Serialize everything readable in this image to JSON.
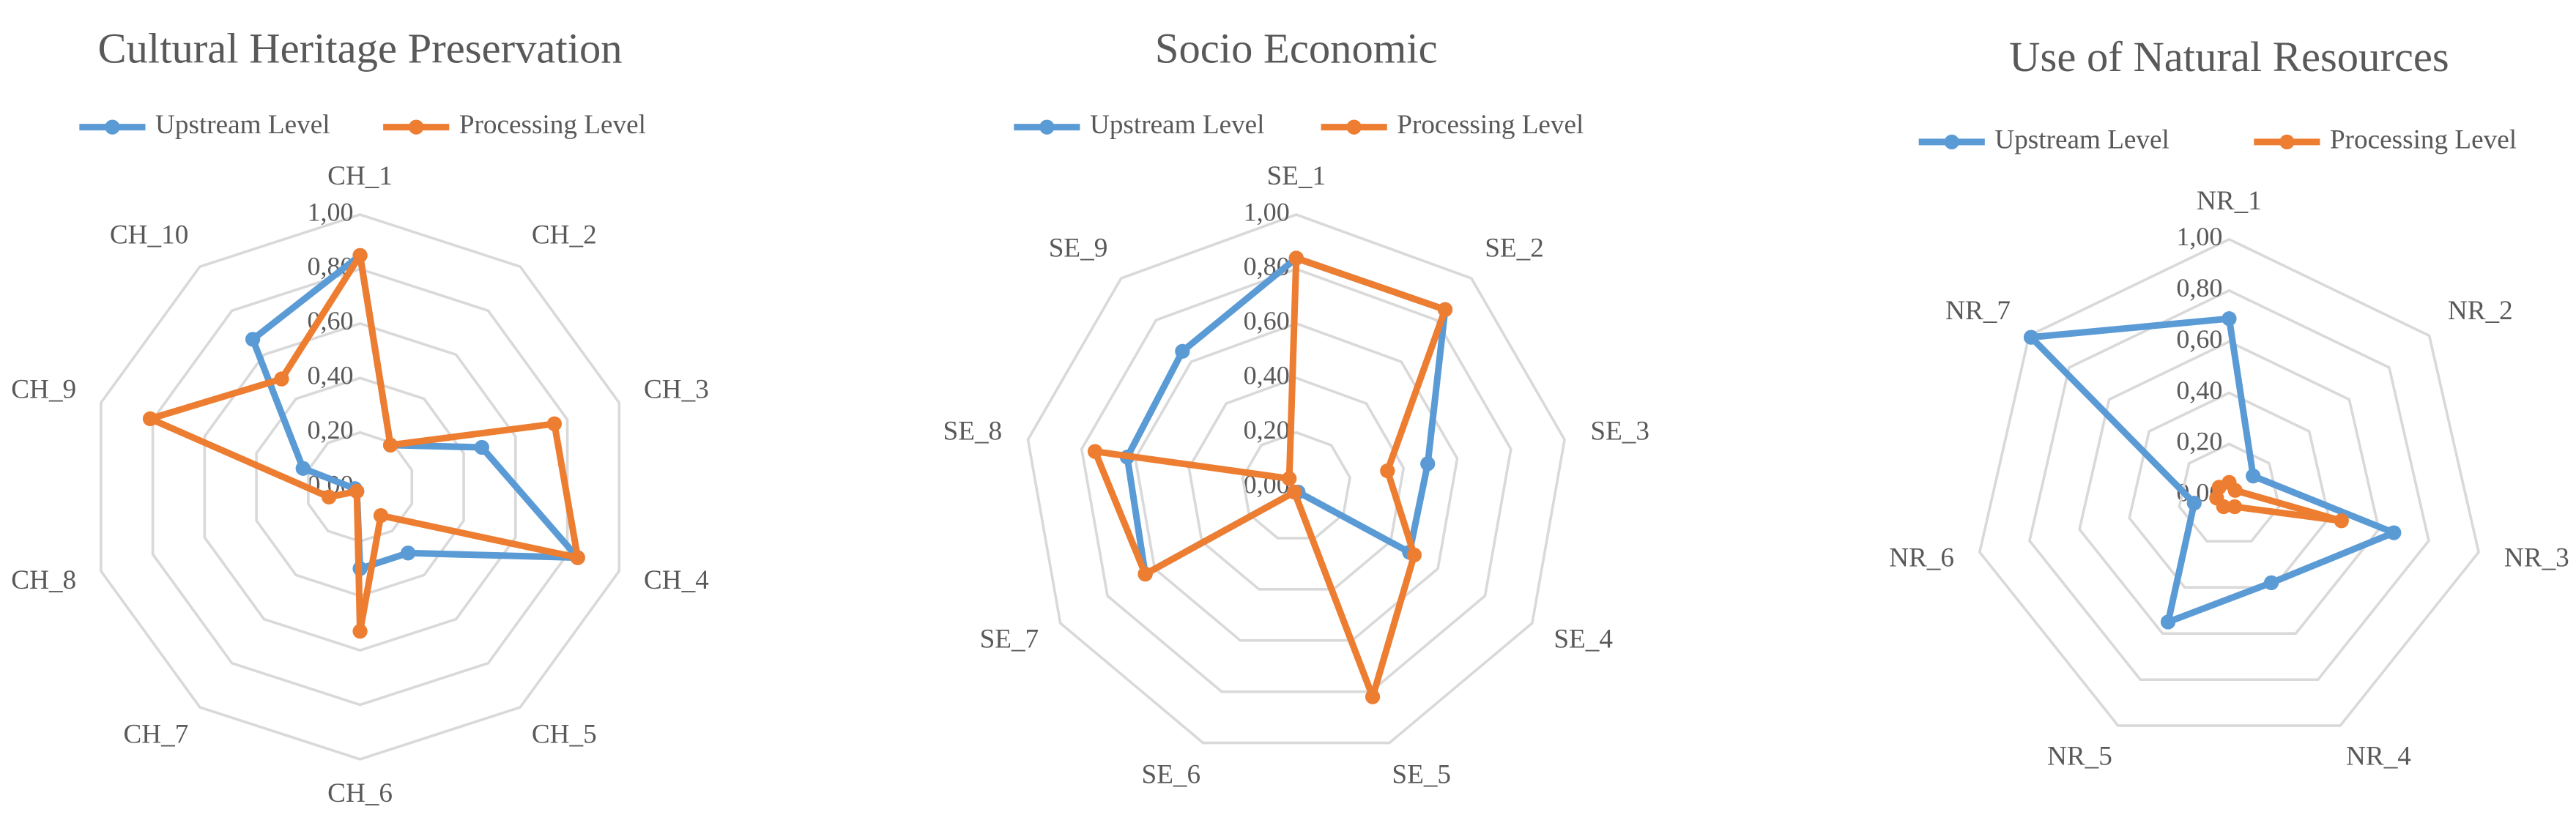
{
  "chart_data": [
    {
      "type": "radar",
      "title": "Cultural Heritage Preservation",
      "categories": [
        "CH_1",
        "CH_2",
        "CH_3",
        "CH_4",
        "CH_5",
        "CH_6",
        "CH_7",
        "CH_8",
        "CH_9",
        "CH_10"
      ],
      "series": [
        {
          "name": "Upstream Level",
          "color": "#5b9bd5",
          "values": [
            0.85,
            0.19,
            0.47,
            0.84,
            0.3,
            0.3,
            0.02,
            0.02,
            0.22,
            0.67
          ]
        },
        {
          "name": "Processing Level",
          "color": "#ed7d31",
          "values": [
            0.85,
            0.19,
            0.75,
            0.84,
            0.13,
            0.53,
            0.02,
            0.12,
            0.81,
            0.49
          ]
        }
      ],
      "ylim": [
        0,
        1
      ],
      "yticks": [
        {
          "value": 0,
          "label": "0,00"
        },
        {
          "value": 0.2,
          "label": "0,20"
        },
        {
          "value": 0.4,
          "label": "0,40"
        },
        {
          "value": 0.6,
          "label": "0,60"
        },
        {
          "value": 0.8,
          "label": "0,80"
        },
        {
          "value": 1,
          "label": "1,00"
        }
      ],
      "grid": true
    },
    {
      "type": "radar",
      "title": "Socio Economic",
      "categories": [
        "SE_1",
        "SE_2",
        "SE_3",
        "SE_4",
        "SE_5",
        "SE_6",
        "SE_7",
        "SE_8",
        "SE_9"
      ],
      "series": [
        {
          "name": "Upstream Level",
          "color": "#5b9bd5",
          "values": [
            0.84,
            0.85,
            0.49,
            0.48,
            0.02,
            0.02,
            0.64,
            0.63,
            0.65
          ]
        },
        {
          "name": "Processing Level",
          "color": "#ed7d31",
          "values": [
            0.84,
            0.85,
            0.34,
            0.5,
            0.82,
            0.02,
            0.64,
            0.75,
            0.04
          ]
        }
      ],
      "ylim": [
        0,
        1
      ],
      "yticks": [
        {
          "value": 0,
          "label": "0,00"
        },
        {
          "value": 0.2,
          "label": "0,20"
        },
        {
          "value": 0.4,
          "label": "0,40"
        },
        {
          "value": 0.6,
          "label": "0,60"
        },
        {
          "value": 0.8,
          "label": "0,80"
        },
        {
          "value": 1,
          "label": "1,00"
        }
      ],
      "grid": true
    },
    {
      "type": "radar",
      "title": "Use of Natural Resources",
      "categories": [
        "NR_1",
        "NR_2",
        "NR_3",
        "NR_4",
        "NR_5",
        "NR_6",
        "NR_7"
      ],
      "series": [
        {
          "name": "Upstream Level",
          "color": "#5b9bd5",
          "values": [
            0.69,
            0.12,
            0.66,
            0.38,
            0.55,
            0.14,
            0.99
          ]
        },
        {
          "name": "Processing Level",
          "color": "#ed7d31",
          "values": [
            0.05,
            0.03,
            0.45,
            0.05,
            0.05,
            0.05,
            0.05
          ]
        }
      ],
      "ylim": [
        0,
        1
      ],
      "yticks": [
        {
          "value": 0,
          "label": "0,00"
        },
        {
          "value": 0.2,
          "label": "0,20"
        },
        {
          "value": 0.4,
          "label": "0,40"
        },
        {
          "value": 0.6,
          "label": "0,60"
        },
        {
          "value": 0.8,
          "label": "0,80"
        },
        {
          "value": 1,
          "label": "1,00"
        }
      ],
      "grid": true
    }
  ]
}
